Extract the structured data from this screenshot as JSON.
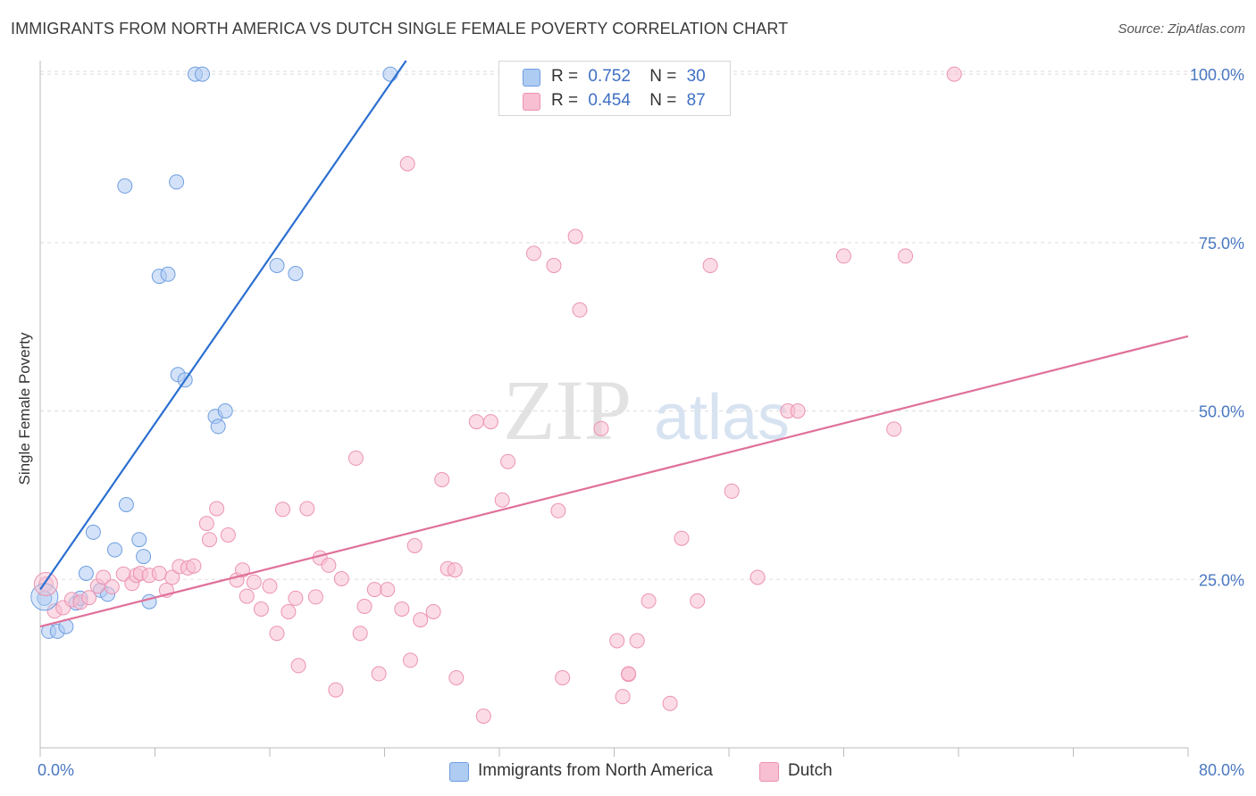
{
  "header": {
    "title": "IMMIGRANTS FROM NORTH AMERICA VS DUTCH SINGLE FEMALE POVERTY CORRELATION CHART",
    "source": "Source: ZipAtlas.com"
  },
  "watermark": {
    "zip": "ZIP",
    "atlas": "atlas"
  },
  "legend": {
    "r_label": "R =",
    "n_label": "N =",
    "series1": {
      "r": "0.752",
      "n": "30"
    },
    "series2": {
      "r": "0.454",
      "n": "87"
    }
  },
  "chart_data": {
    "type": "scatter",
    "title": "IMMIGRANTS FROM NORTH AMERICA VS DUTCH SINGLE FEMALE POVERTY CORRELATION CHART",
    "xlabel": "",
    "ylabel": "Single Female Poverty",
    "xlim": [
      0,
      80
    ],
    "ylim": [
      0,
      102
    ],
    "x_tick_labels": [
      "0.0%",
      "80.0%"
    ],
    "y_ticks": [
      25,
      50,
      75,
      100
    ],
    "y_tick_labels": [
      "25.0%",
      "50.0%",
      "75.0%",
      "100.0%"
    ],
    "grid": true,
    "legend_position": "top-center",
    "colors": {
      "series1_fill": "#aecbf2",
      "series1_stroke": "#6f9ee0",
      "series1_line": "#2b6fd0",
      "series2_fill": "#f7bfd1",
      "series2_stroke": "#ec93b2",
      "series2_line": "#e0709a",
      "grid": "#dddddd",
      "tick_label": "#4a78c2"
    },
    "series": [
      {
        "name": "Immigrants from North America",
        "r": 0.752,
        "n": 30,
        "trend": {
          "x0": 0,
          "y0": 23.5,
          "x1": 25.5,
          "y1": 102
        },
        "points": [
          [
            0.3,
            22.2
          ],
          [
            0.6,
            17.3
          ],
          [
            1.2,
            17.3
          ],
          [
            1.8,
            18.0
          ],
          [
            2.5,
            21.5
          ],
          [
            2.8,
            22.2
          ],
          [
            3.2,
            25.9
          ],
          [
            3.7,
            32.0
          ],
          [
            4.2,
            23.4
          ],
          [
            4.7,
            22.8
          ],
          [
            5.2,
            29.4
          ],
          [
            6.0,
            36.1
          ],
          [
            6.9,
            30.9
          ],
          [
            7.2,
            28.4
          ],
          [
            7.6,
            21.7
          ],
          [
            5.9,
            83.4
          ],
          [
            9.5,
            84.0
          ],
          [
            8.3,
            70.0
          ],
          [
            8.9,
            70.3
          ],
          [
            9.6,
            55.4
          ],
          [
            10.1,
            54.6
          ],
          [
            12.2,
            49.2
          ],
          [
            12.4,
            47.7
          ],
          [
            12.9,
            50.0
          ],
          [
            10.8,
            100.0
          ],
          [
            11.3,
            100.0
          ],
          [
            16.5,
            71.6
          ],
          [
            17.8,
            70.4
          ],
          [
            24.4,
            100.0
          ],
          [
            33.0,
            100.0
          ]
        ]
      },
      {
        "name": "Dutch",
        "r": 0.454,
        "n": 87,
        "trend": {
          "x0": 0,
          "y0": 18.0,
          "x1": 80,
          "y1": 61.1
        },
        "points": [
          [
            0.4,
            24.3
          ],
          [
            1.0,
            20.3
          ],
          [
            1.6,
            20.8
          ],
          [
            2.2,
            22.0
          ],
          [
            2.8,
            21.6
          ],
          [
            3.4,
            22.3
          ],
          [
            4.0,
            24.0
          ],
          [
            4.4,
            25.3
          ],
          [
            5.0,
            23.9
          ],
          [
            5.8,
            25.8
          ],
          [
            6.4,
            24.4
          ],
          [
            6.7,
            25.6
          ],
          [
            7.0,
            25.9
          ],
          [
            7.6,
            25.6
          ],
          [
            8.3,
            25.9
          ],
          [
            8.8,
            23.4
          ],
          [
            9.2,
            25.3
          ],
          [
            9.7,
            26.9
          ],
          [
            10.3,
            26.7
          ],
          [
            10.7,
            27.0
          ],
          [
            11.6,
            33.3
          ],
          [
            11.8,
            30.9
          ],
          [
            12.3,
            35.5
          ],
          [
            13.1,
            31.6
          ],
          [
            13.7,
            24.9
          ],
          [
            14.1,
            26.4
          ],
          [
            14.4,
            22.5
          ],
          [
            14.9,
            24.6
          ],
          [
            15.4,
            20.6
          ],
          [
            16.0,
            24.0
          ],
          [
            16.5,
            17.0
          ],
          [
            16.9,
            35.4
          ],
          [
            17.3,
            20.2
          ],
          [
            17.8,
            22.2
          ],
          [
            18.0,
            12.2
          ],
          [
            18.6,
            35.5
          ],
          [
            19.2,
            22.4
          ],
          [
            19.5,
            28.2
          ],
          [
            20.1,
            27.1
          ],
          [
            20.6,
            8.6
          ],
          [
            21.0,
            25.1
          ],
          [
            22.0,
            43.0
          ],
          [
            22.3,
            17.0
          ],
          [
            22.6,
            21.0
          ],
          [
            23.3,
            23.5
          ],
          [
            23.6,
            11.0
          ],
          [
            24.2,
            23.5
          ],
          [
            25.2,
            20.6
          ],
          [
            25.6,
            86.7
          ],
          [
            25.8,
            13.0
          ],
          [
            26.1,
            30.0
          ],
          [
            26.5,
            19.0
          ],
          [
            27.4,
            20.2
          ],
          [
            28.0,
            39.8
          ],
          [
            28.4,
            26.6
          ],
          [
            29.0,
            10.4
          ],
          [
            30.4,
            48.4
          ],
          [
            30.9,
            4.7
          ],
          [
            31.4,
            48.4
          ],
          [
            32.2,
            36.8
          ],
          [
            32.6,
            42.5
          ],
          [
            34.4,
            73.4
          ],
          [
            35.8,
            71.6
          ],
          [
            36.1,
            35.2
          ],
          [
            36.4,
            10.4
          ],
          [
            37.3,
            75.9
          ],
          [
            37.6,
            65.0
          ],
          [
            39.1,
            47.4
          ],
          [
            40.2,
            15.9
          ],
          [
            40.6,
            7.6
          ],
          [
            41.0,
            10.9
          ],
          [
            41.6,
            15.9
          ],
          [
            42.4,
            21.8
          ],
          [
            43.9,
            6.6
          ],
          [
            44.7,
            31.1
          ],
          [
            45.8,
            21.8
          ],
          [
            46.7,
            71.6
          ],
          [
            48.2,
            38.1
          ],
          [
            50.0,
            25.3
          ],
          [
            52.1,
            50.0
          ],
          [
            52.8,
            50.0
          ],
          [
            56.0,
            73.0
          ],
          [
            60.3,
            73.0
          ],
          [
            63.7,
            100.0
          ],
          [
            59.5,
            47.3
          ],
          [
            41.0,
            11.0
          ],
          [
            28.9,
            26.4
          ]
        ]
      }
    ]
  },
  "bottom_legend": {
    "series1": "Immigrants from North America",
    "series2": "Dutch"
  }
}
